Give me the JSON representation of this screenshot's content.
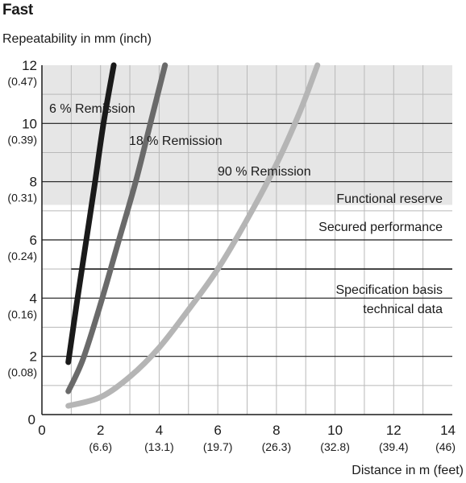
{
  "chart_data": {
    "type": "line",
    "title": "Fast",
    "ylabel": "Repeatability in mm (inch)",
    "xlabel": "Distance in m (feet)",
    "xlim": [
      0,
      14
    ],
    "ylim": [
      0,
      12
    ],
    "grid": true,
    "x_ticks": [
      {
        "value": 0,
        "label": "0",
        "sub": ""
      },
      {
        "value": 2,
        "label": "2",
        "sub": "(6.6)"
      },
      {
        "value": 4,
        "label": "4",
        "sub": "(13.1)"
      },
      {
        "value": 6,
        "label": "6",
        "sub": "(19.7)"
      },
      {
        "value": 8,
        "label": "8",
        "sub": "(26.3)"
      },
      {
        "value": 10,
        "label": "10",
        "sub": "(32.8)"
      },
      {
        "value": 12,
        "label": "12",
        "sub": "(39.4)"
      },
      {
        "value": 14,
        "label": "14",
        "sub": "(46)"
      }
    ],
    "y_ticks": [
      {
        "value": 0,
        "label": "0",
        "sub": ""
      },
      {
        "value": 2,
        "label": "2",
        "sub": "(0.08)"
      },
      {
        "value": 4,
        "label": "4",
        "sub": "(0.16)"
      },
      {
        "value": 6,
        "label": "6",
        "sub": "(0.24)"
      },
      {
        "value": 8,
        "label": "8",
        "sub": "(0.31)"
      },
      {
        "value": 10,
        "label": "10",
        "sub": "(0.39)"
      },
      {
        "value": 12,
        "label": "12",
        "sub": "(0.47)"
      }
    ],
    "regions": [
      {
        "name": "Functional reserve",
        "from": 7.2,
        "to": 12,
        "color": "#e6e6e6"
      },
      {
        "name": "Secured performance",
        "from": 5.0,
        "to": 7.2,
        "color": "#ffffff"
      },
      {
        "name": "Specification basis technical data",
        "from": 0,
        "to": 5.0,
        "color": "#ffffff"
      }
    ],
    "region_labels": {
      "functional_reserve": "Functional reserve",
      "secured_performance": "Secured performance",
      "spec_line1": "Specification basis",
      "spec_line2": "technical data"
    },
    "threshold_lines": [
      {
        "y": 5.0,
        "x_from": 1.0,
        "x_to": 14
      }
    ],
    "series": [
      {
        "name": "6 % Remission",
        "color": "#1a1a1a",
        "x": [
          0.9,
          1.2,
          1.5,
          1.8,
          2.1,
          2.45
        ],
        "y": [
          1.8,
          3.9,
          5.9,
          7.9,
          10.0,
          12.0
        ]
      },
      {
        "name": "18 % Remission",
        "color": "#6a6a6a",
        "x": [
          0.9,
          1.4,
          2.0,
          2.6,
          3.2,
          3.7,
          4.2
        ],
        "y": [
          0.8,
          1.9,
          3.8,
          5.9,
          8.0,
          10.0,
          12.0
        ]
      },
      {
        "name": "90 % Remission",
        "color": "#b5b5b5",
        "x": [
          0.9,
          2.0,
          3.0,
          4.0,
          5.0,
          6.0,
          7.0,
          8.0,
          8.8,
          9.4
        ],
        "y": [
          0.3,
          0.6,
          1.3,
          2.3,
          3.6,
          5.0,
          6.7,
          8.6,
          10.4,
          12.0
        ]
      }
    ]
  }
}
